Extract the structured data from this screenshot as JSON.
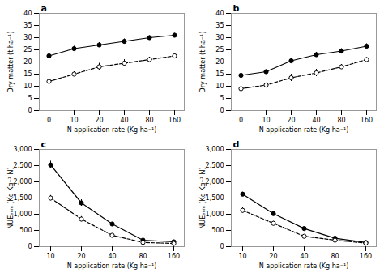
{
  "chart_data": [
    {
      "type": "line",
      "title": "a",
      "xlabel": "N application rate (Kg ha⁻¹)",
      "ylabel": "Dry matter (t ha⁻¹)",
      "categories": [
        "0",
        "10",
        "20",
        "40",
        "80",
        "160"
      ],
      "series": [
        {
          "color": "#000000",
          "line_style": "solid",
          "marker": "circle",
          "values": [
            22.5,
            25.5,
            27.0,
            28.5,
            30.0,
            31.0
          ],
          "errors": [
            1.2,
            1.0,
            1.0,
            1.0,
            0.8,
            0.8
          ]
        },
        {
          "color": "#000000",
          "line_style": "dashed",
          "marker": "open_circle",
          "values": [
            12.0,
            15.0,
            18.0,
            19.5,
            21.0,
            22.5
          ],
          "errors": [
            1.2,
            1.0,
            1.5,
            1.5,
            1.0,
            0.8
          ]
        }
      ],
      "ylim": [
        0,
        40
      ],
      "yticks": [
        0,
        5,
        10,
        15,
        20,
        25,
        30,
        35,
        40
      ]
    },
    {
      "type": "line",
      "title": "b",
      "xlabel": "N application rate (Kg ha⁻¹)",
      "ylabel": "Dry matter (t ha⁻¹)",
      "categories": [
        "0",
        "10",
        "20",
        "40",
        "80",
        "160"
      ],
      "series": [
        {
          "color": "#000000",
          "line_style": "solid",
          "marker": "circle",
          "values": [
            14.5,
            16.0,
            20.5,
            23.0,
            24.5,
            26.5
          ],
          "errors": [
            0.8,
            0.8,
            1.0,
            1.0,
            1.0,
            1.0
          ]
        },
        {
          "color": "#000000",
          "line_style": "dashed",
          "marker": "open_circle",
          "values": [
            9.0,
            10.5,
            13.5,
            15.5,
            18.0,
            21.0
          ],
          "errors": [
            1.0,
            0.8,
            1.5,
            1.5,
            1.0,
            0.8
          ]
        }
      ],
      "ylim": [
        0,
        40
      ],
      "yticks": [
        0,
        5,
        10,
        15,
        20,
        25,
        30,
        35,
        40
      ]
    },
    {
      "type": "line",
      "title": "c",
      "xlabel": "N application rate (Kg ha⁻¹)",
      "ylabel": "NUEₑₙₘ (Kg Kg⁻¹ N)",
      "categories": [
        "10",
        "20",
        "40",
        "80",
        "160"
      ],
      "series": [
        {
          "color": "#000000",
          "line_style": "solid",
          "marker": "circle",
          "values": [
            2520,
            1350,
            700,
            200,
            150
          ],
          "errors": [
            120,
            100,
            50,
            20,
            15
          ]
        },
        {
          "color": "#000000",
          "line_style": "dashed",
          "marker": "open_circle",
          "values": [
            1500,
            850,
            350,
            130,
            100
          ],
          "errors": [
            80,
            80,
            40,
            15,
            10
          ]
        }
      ],
      "ylim": [
        0,
        3000
      ],
      "yticks": [
        0,
        500,
        1000,
        1500,
        2000,
        2500,
        3000
      ]
    },
    {
      "type": "line",
      "title": "d",
      "xlabel": "N application rate (Kg ha⁻¹)",
      "ylabel": "NUEₑₙₘ (Kg Kg⁻¹ N)",
      "categories": [
        "10",
        "20",
        "40",
        "80",
        "160"
      ],
      "series": [
        {
          "color": "#000000",
          "line_style": "solid",
          "marker": "circle",
          "values": [
            1620,
            1020,
            560,
            260,
            130
          ],
          "errors": [
            60,
            50,
            40,
            20,
            10
          ]
        },
        {
          "color": "#000000",
          "line_style": "dashed",
          "marker": "open_circle",
          "values": [
            1120,
            720,
            320,
            200,
            110
          ],
          "errors": [
            80,
            60,
            30,
            20,
            10
          ]
        }
      ],
      "ylim": [
        0,
        3000
      ],
      "yticks": [
        0,
        500,
        1000,
        1500,
        2000,
        2500,
        3000
      ]
    }
  ]
}
